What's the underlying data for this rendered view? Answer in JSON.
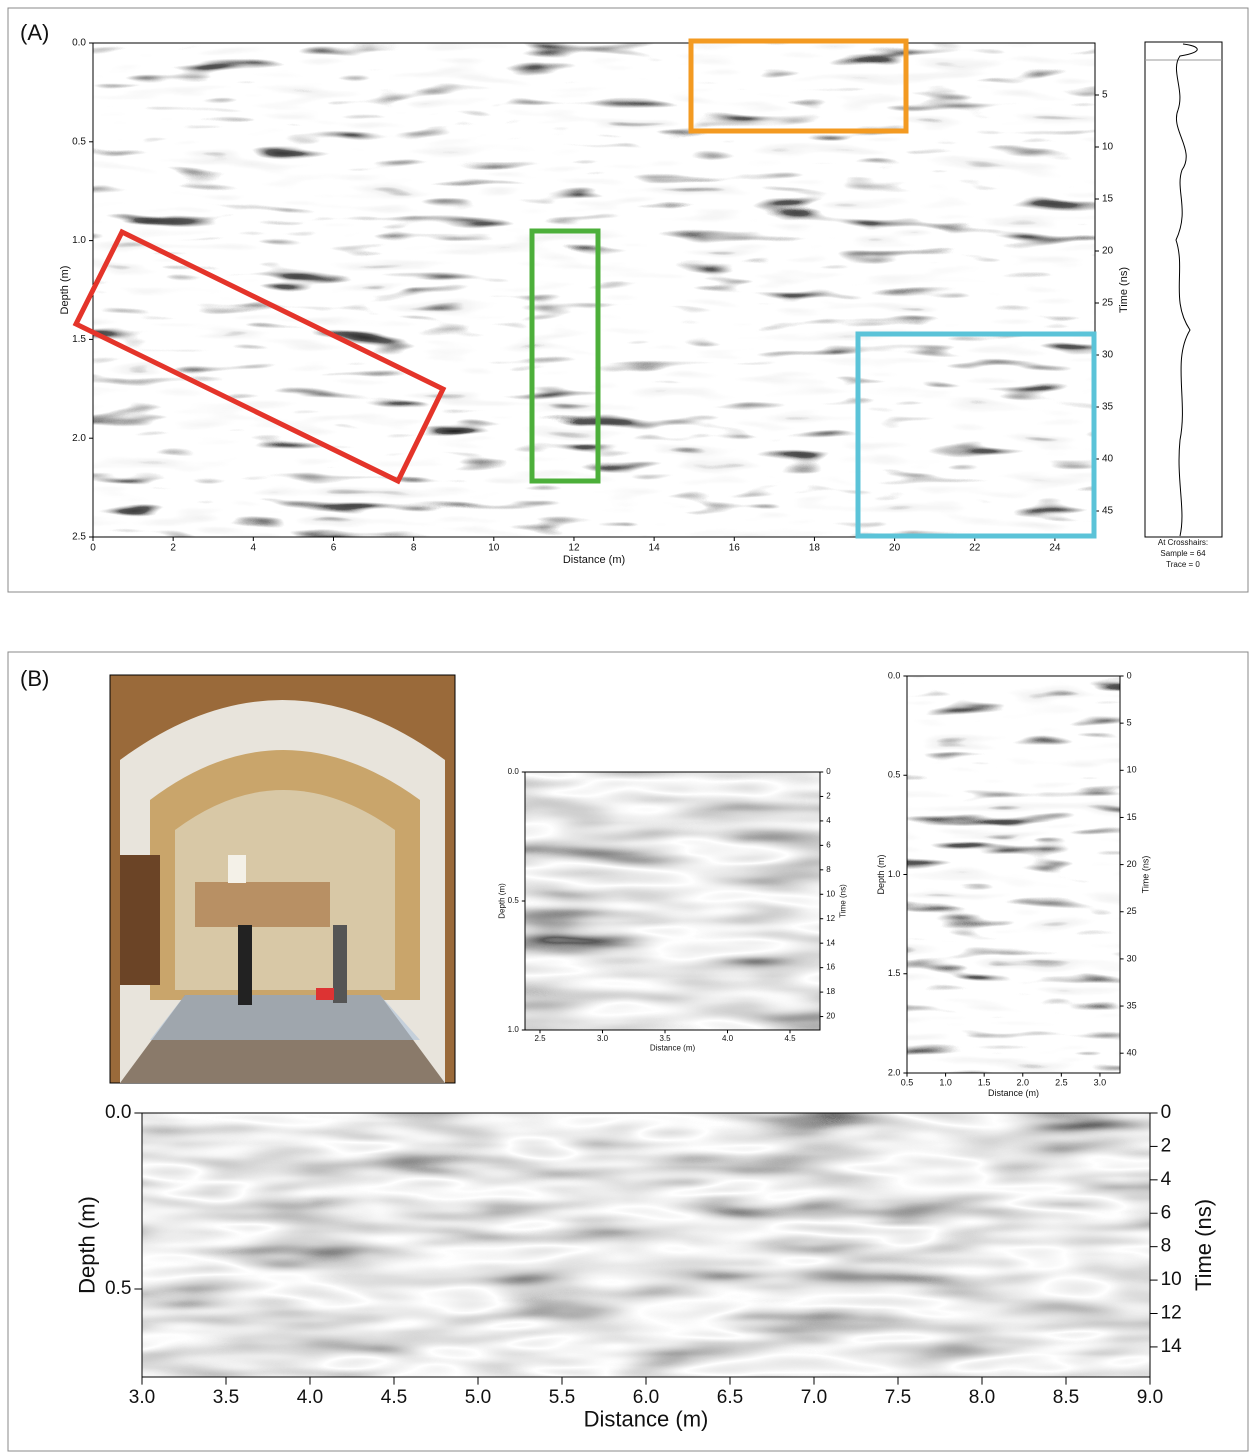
{
  "panel_labels": [
    "(A)",
    "(B)"
  ],
  "trace_panel": {
    "lines": [
      "At Crosshairs:",
      "Sample = 64",
      "Trace = 0"
    ]
  },
  "chart_data": [
    {
      "type": "radargram",
      "xlabel": "Distance (m)",
      "ylabel": "Depth (m)",
      "y2label": "Time (ns)",
      "xlim": [
        0,
        25
      ],
      "xticks": [
        0,
        2,
        4,
        6,
        8,
        10,
        12,
        14,
        16,
        18,
        20,
        22,
        24
      ],
      "ylim": [
        0,
        2.5
      ],
      "yticks": [
        {
          "value": 0,
          "label": "0.0"
        },
        0.5,
        {
          "value": 1,
          "label": "1.0"
        },
        1.5,
        {
          "value": 2,
          "label": "2.0"
        },
        2.5
      ],
      "y2lim": [
        0,
        47.5
      ],
      "y2ticks": [
        5,
        10,
        15,
        20,
        25,
        30,
        35,
        40,
        45
      ]
    },
    {
      "type": "radargram",
      "xlabel": "Distance (m)",
      "ylabel": "Depth (m)",
      "y2label": "Time (ns)",
      "xlim": [
        2.38,
        4.74
      ],
      "xticks": [
        2.5,
        {
          "value": 3,
          "label": "3.0"
        },
        3.5,
        {
          "value": 4,
          "label": "4.0"
        },
        4.5
      ],
      "ylim": [
        0,
        1.0
      ],
      "yticks": [
        {
          "value": 0,
          "label": "0.0"
        },
        0.5,
        {
          "value": 1,
          "label": "1.0"
        }
      ],
      "y2lim": [
        0,
        21.1
      ],
      "y2ticks": [
        0,
        2,
        4,
        6,
        8,
        10,
        12,
        14,
        16,
        18,
        20
      ]
    },
    {
      "type": "radargram",
      "xlabel": "Distance (m)",
      "ylabel": "Depth (m)",
      "y2label": "Time (ns)",
      "xlim": [
        0.5,
        3.26
      ],
      "xticks": [
        0.5,
        {
          "value": 1,
          "label": "1.0"
        },
        1.5,
        {
          "value": 2,
          "label": "2.0"
        },
        2.5,
        {
          "value": 3,
          "label": "3.0"
        }
      ],
      "ylim": [
        0,
        2.0
      ],
      "yticks": [
        {
          "value": 0,
          "label": "0.0"
        },
        0.5,
        {
          "value": 1,
          "label": "1.0"
        },
        1.5,
        {
          "value": 2,
          "label": "2.0"
        }
      ],
      "y2lim": [
        0,
        42.1
      ],
      "y2ticks": [
        0,
        5,
        10,
        15,
        20,
        25,
        30,
        35,
        40
      ]
    },
    {
      "type": "radargram",
      "xlabel": "Distance (m)",
      "ylabel": "Depth (m)",
      "y2label": "Time (ns)",
      "xlim": [
        3,
        9
      ],
      "xticks": [
        {
          "value": 3,
          "label": "3.0"
        },
        3.5,
        {
          "value": 4,
          "label": "4.0"
        },
        4.5,
        {
          "value": 5,
          "label": "5.0"
        },
        5.5,
        {
          "value": 6,
          "label": "6.0"
        },
        6.5,
        {
          "value": 7,
          "label": "7.0"
        },
        7.5,
        {
          "value": 8,
          "label": "8.0"
        },
        8.5,
        {
          "value": 9,
          "label": "9.0"
        }
      ],
      "ylim": [
        0,
        0.75
      ],
      "yticks": [
        {
          "value": 0,
          "label": "0.0"
        },
        0.5
      ],
      "y2lim": [
        0,
        15.8
      ],
      "y2ticks": [
        0,
        2,
        4,
        6,
        8,
        10,
        12,
        14
      ]
    }
  ]
}
